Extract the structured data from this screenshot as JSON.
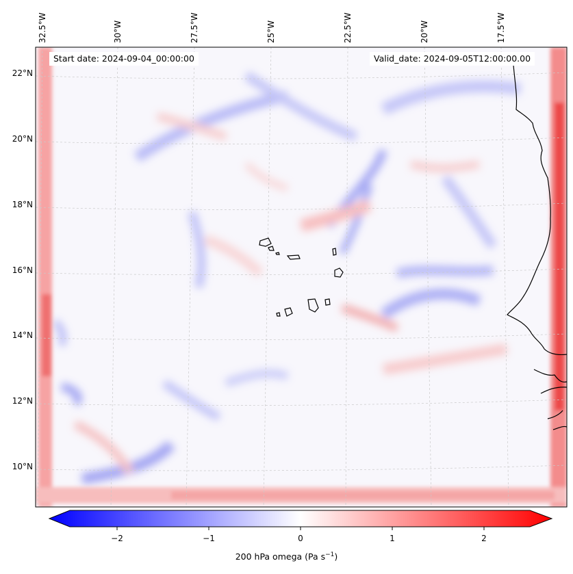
{
  "map": {
    "projection_note": "",
    "longitude_labels": [
      "32.5°W",
      "30°W",
      "27.5°W",
      "25°W",
      "22.5°W",
      "20°W",
      "17.5°W"
    ],
    "latitude_labels": [
      "22°N",
      "20°N",
      "18°N",
      "16°N",
      "14°N",
      "12°N",
      "10°N"
    ],
    "start_date": "Start date: 2024-09-04_00:00:00",
    "valid_date": "Valid_date: 2024-09-05T12:00:00.00"
  },
  "colorbar": {
    "label_main": "200 hPa omega (Pa s",
    "label_exp": "−1",
    "label_close": ")",
    "tick_labels": [
      "−2",
      "−1",
      "0",
      "1",
      "2"
    ],
    "ticks": [
      -2,
      -1,
      0,
      1,
      2
    ],
    "range": [
      -2.5,
      2.5
    ],
    "extend": "both",
    "colormap": "bwr",
    "colors": {
      "negative": "#0000ff",
      "zero": "#ffffff",
      "positive": "#ff0000"
    }
  },
  "chart_data": {
    "type": "heatmap",
    "variable": "200 hPa omega",
    "units": "Pa s-1",
    "x_range_deg": [
      -32.5,
      -16.2
    ],
    "y_range_deg": [
      8.9,
      22.8
    ],
    "grid": true
  }
}
